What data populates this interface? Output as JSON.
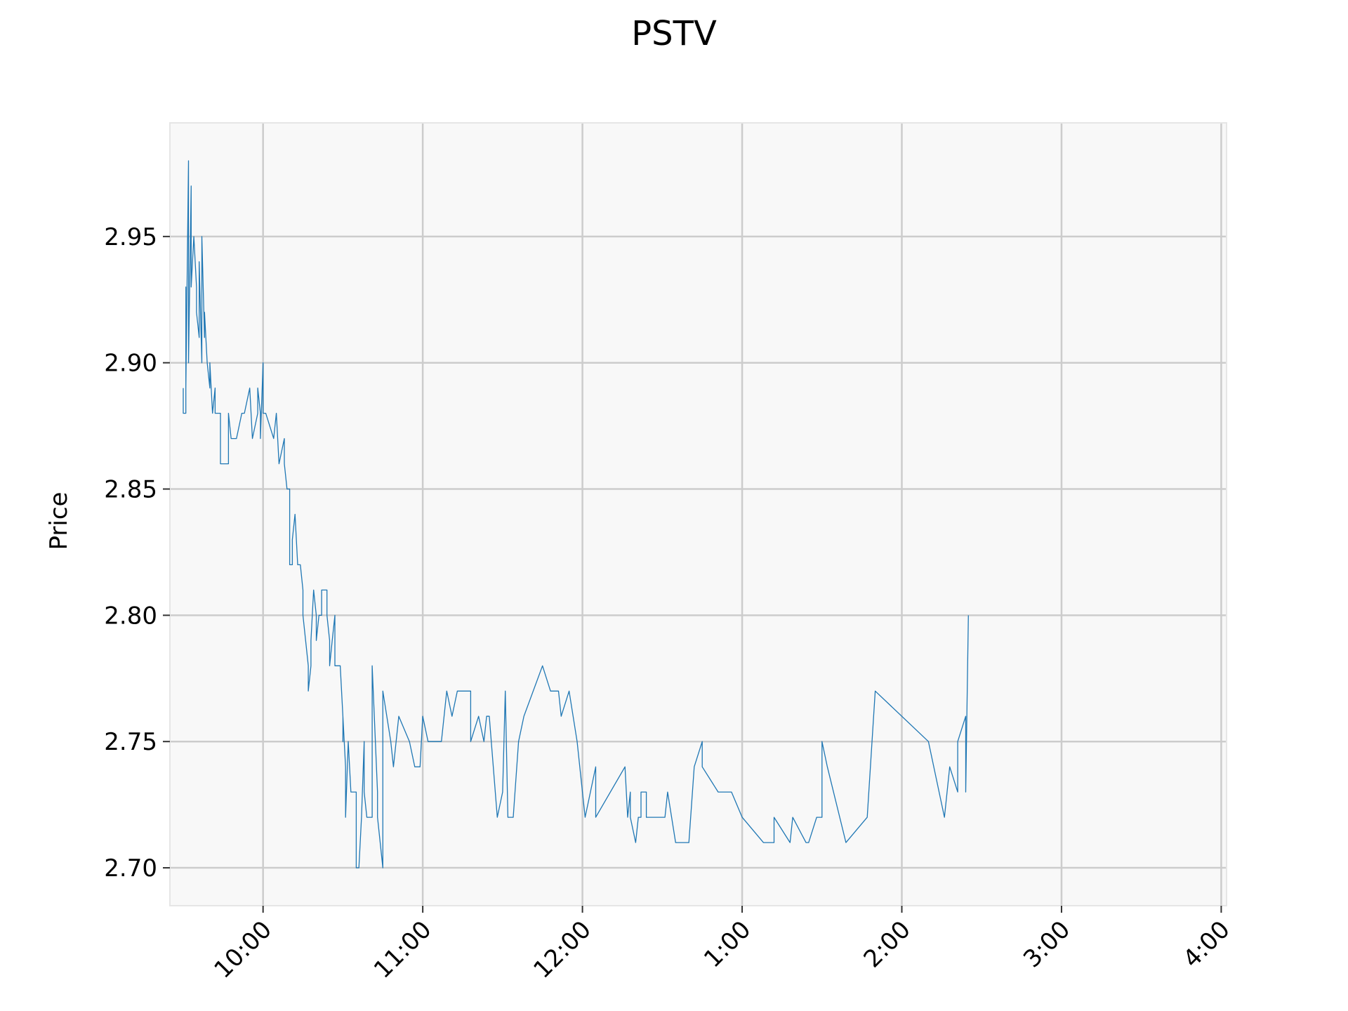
{
  "chart_data": {
    "type": "line",
    "title": "PSTV",
    "xlabel": "",
    "ylabel": "Price",
    "x_unit": "time of day",
    "xlim": [
      "9:25",
      "16:02"
    ],
    "ylim": [
      2.685,
      2.995
    ],
    "grid": true,
    "legend": "none",
    "line_color": "#1f77b4",
    "background_color": "#f8f8f8",
    "y_ticks": [
      {
        "value": 2.7,
        "label": "2.70"
      },
      {
        "value": 2.75,
        "label": "2.75"
      },
      {
        "value": 2.8,
        "label": "2.80"
      },
      {
        "value": 2.85,
        "label": "2.85"
      },
      {
        "value": 2.9,
        "label": "2.90"
      },
      {
        "value": 2.95,
        "label": "2.95"
      }
    ],
    "x_ticks": [
      {
        "value": "10:00",
        "label": "10:00"
      },
      {
        "value": "11:00",
        "label": "11:00"
      },
      {
        "value": "12:00",
        "label": "12:00"
      },
      {
        "value": "13:00",
        "label": "1:00"
      },
      {
        "value": "14:00",
        "label": "2:00"
      },
      {
        "value": "15:00",
        "label": "3:00"
      },
      {
        "value": "16:00",
        "label": "4:00"
      }
    ],
    "series": [
      {
        "points": [
          [
            "9:30",
            2.89
          ],
          [
            "9:30",
            2.88
          ],
          [
            "9:31",
            2.88
          ],
          [
            "9:31",
            2.93
          ],
          [
            "9:31",
            2.89
          ],
          [
            "9:32",
            2.98
          ],
          [
            "9:32",
            2.9
          ],
          [
            "9:33",
            2.97
          ],
          [
            "9:33",
            2.93
          ],
          [
            "9:34",
            2.95
          ],
          [
            "9:35",
            2.93
          ],
          [
            "9:35",
            2.92
          ],
          [
            "9:36",
            2.91
          ],
          [
            "9:36",
            2.94
          ],
          [
            "9:37",
            2.9
          ],
          [
            "9:37",
            2.95
          ],
          [
            "9:38",
            2.91
          ],
          [
            "9:38",
            2.92
          ],
          [
            "9:39",
            2.9
          ],
          [
            "9:40",
            2.89
          ],
          [
            "9:40",
            2.9
          ],
          [
            "9:41",
            2.88
          ],
          [
            "9:42",
            2.89
          ],
          [
            "9:42",
            2.88
          ],
          [
            "9:44",
            2.88
          ],
          [
            "9:44",
            2.86
          ],
          [
            "9:46",
            2.86
          ],
          [
            "9:47",
            2.86
          ],
          [
            "9:47",
            2.88
          ],
          [
            "9:48",
            2.87
          ],
          [
            "9:50",
            2.87
          ],
          [
            "9:52",
            2.88
          ],
          [
            "9:53",
            2.88
          ],
          [
            "9:55",
            2.89
          ],
          [
            "9:56",
            2.87
          ],
          [
            "9:58",
            2.88
          ],
          [
            "9:58",
            2.89
          ],
          [
            "9:59",
            2.88
          ],
          [
            "9:59",
            2.87
          ],
          [
            "10:00",
            2.9
          ],
          [
            "10:00",
            2.88
          ],
          [
            "10:01",
            2.88
          ],
          [
            "10:04",
            2.87
          ],
          [
            "10:05",
            2.88
          ],
          [
            "10:06",
            2.86
          ],
          [
            "10:08",
            2.87
          ],
          [
            "10:08",
            2.86
          ],
          [
            "10:09",
            2.85
          ],
          [
            "10:10",
            2.85
          ],
          [
            "10:10",
            2.82
          ],
          [
            "10:11",
            2.82
          ],
          [
            "10:11",
            2.83
          ],
          [
            "10:12",
            2.84
          ],
          [
            "10:13",
            2.82
          ],
          [
            "10:14",
            2.82
          ],
          [
            "10:15",
            2.81
          ],
          [
            "10:15",
            2.8
          ],
          [
            "10:16",
            2.79
          ],
          [
            "10:17",
            2.78
          ],
          [
            "10:17",
            2.77
          ],
          [
            "10:18",
            2.78
          ],
          [
            "10:18",
            2.79
          ],
          [
            "10:19",
            2.81
          ],
          [
            "10:20",
            2.8
          ],
          [
            "10:20",
            2.79
          ],
          [
            "10:21",
            2.8
          ],
          [
            "10:22",
            2.8
          ],
          [
            "10:22",
            2.81
          ],
          [
            "10:24",
            2.81
          ],
          [
            "10:24",
            2.8
          ],
          [
            "10:25",
            2.79
          ],
          [
            "10:25",
            2.78
          ],
          [
            "10:26",
            2.79
          ],
          [
            "10:27",
            2.8
          ],
          [
            "10:27",
            2.78
          ],
          [
            "10:29",
            2.78
          ],
          [
            "10:30",
            2.76
          ],
          [
            "10:30",
            2.75
          ],
          [
            "10:30",
            2.76
          ],
          [
            "10:31",
            2.74
          ],
          [
            "10:31",
            2.72
          ],
          [
            "10:32",
            2.75
          ],
          [
            "10:33",
            2.73
          ],
          [
            "10:35",
            2.73
          ],
          [
            "10:35",
            2.7
          ],
          [
            "10:36",
            2.7
          ],
          [
            "10:37",
            2.72
          ],
          [
            "10:38",
            2.75
          ],
          [
            "10:38",
            2.73
          ],
          [
            "10:39",
            2.72
          ],
          [
            "10:41",
            2.72
          ],
          [
            "10:41",
            2.78
          ],
          [
            "10:43",
            2.73
          ],
          [
            "10:43",
            2.72
          ],
          [
            "10:45",
            2.7
          ],
          [
            "10:45",
            2.77
          ],
          [
            "10:48",
            2.75
          ],
          [
            "10:49",
            2.74
          ],
          [
            "10:51",
            2.76
          ],
          [
            "10:55",
            2.75
          ],
          [
            "10:57",
            2.74
          ],
          [
            "10:59",
            2.74
          ],
          [
            "11:00",
            2.76
          ],
          [
            "11:02",
            2.75
          ],
          [
            "11:03",
            2.75
          ],
          [
            "11:07",
            2.75
          ],
          [
            "11:09",
            2.77
          ],
          [
            "11:11",
            2.76
          ],
          [
            "11:13",
            2.77
          ],
          [
            "11:16",
            2.77
          ],
          [
            "11:18",
            2.77
          ],
          [
            "11:18",
            2.75
          ],
          [
            "11:21",
            2.76
          ],
          [
            "11:23",
            2.75
          ],
          [
            "11:24",
            2.76
          ],
          [
            "11:25",
            2.76
          ],
          [
            "11:28",
            2.72
          ],
          [
            "11:30",
            2.73
          ],
          [
            "11:31",
            2.77
          ],
          [
            "11:32",
            2.72
          ],
          [
            "11:34",
            2.72
          ],
          [
            "11:36",
            2.75
          ],
          [
            "11:38",
            2.76
          ],
          [
            "11:45",
            2.78
          ],
          [
            "11:48",
            2.77
          ],
          [
            "11:51",
            2.77
          ],
          [
            "11:52",
            2.76
          ],
          [
            "11:55",
            2.77
          ],
          [
            "11:58",
            2.75
          ],
          [
            "12:01",
            2.72
          ],
          [
            "12:05",
            2.74
          ],
          [
            "12:05",
            2.72
          ],
          [
            "12:16",
            2.74
          ],
          [
            "12:17",
            2.72
          ],
          [
            "12:18",
            2.73
          ],
          [
            "12:18",
            2.72
          ],
          [
            "12:20",
            2.71
          ],
          [
            "12:21",
            2.72
          ],
          [
            "12:22",
            2.72
          ],
          [
            "12:22",
            2.73
          ],
          [
            "12:24",
            2.73
          ],
          [
            "12:24",
            2.72
          ],
          [
            "12:31",
            2.72
          ],
          [
            "12:32",
            2.73
          ],
          [
            "12:35",
            2.71
          ],
          [
            "12:40",
            2.71
          ],
          [
            "12:42",
            2.74
          ],
          [
            "12:45",
            2.75
          ],
          [
            "12:45",
            2.74
          ],
          [
            "12:51",
            2.73
          ],
          [
            "12:56",
            2.73
          ],
          [
            "13:00",
            2.72
          ],
          [
            "13:08",
            2.71
          ],
          [
            "13:12",
            2.71
          ],
          [
            "13:12",
            2.72
          ],
          [
            "13:18",
            2.71
          ],
          [
            "13:19",
            2.72
          ],
          [
            "13:24",
            2.71
          ],
          [
            "13:25",
            2.71
          ],
          [
            "13:28",
            2.72
          ],
          [
            "13:30",
            2.72
          ],
          [
            "13:30",
            2.75
          ],
          [
            "13:32",
            2.74
          ],
          [
            "13:39",
            2.71
          ],
          [
            "13:47",
            2.72
          ],
          [
            "13:50",
            2.77
          ],
          [
            "14:10",
            2.75
          ],
          [
            "14:16",
            2.72
          ],
          [
            "14:18",
            2.74
          ],
          [
            "14:21",
            2.73
          ],
          [
            "14:21",
            2.75
          ],
          [
            "14:24",
            2.76
          ],
          [
            "14:24",
            2.73
          ],
          [
            "14:25",
            2.8
          ]
        ]
      }
    ]
  }
}
